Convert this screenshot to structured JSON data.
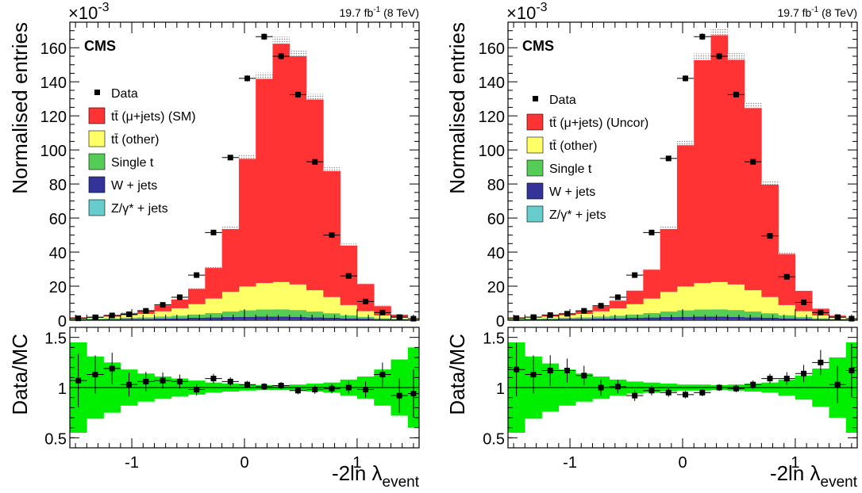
{
  "chart_data": [
    {
      "type": "bar",
      "id": "left",
      "lumi_text": "19.7 fb",
      "lumi_sup": "-1",
      "lumi_suffix": " (8 TeV)",
      "experiment": "CMS",
      "multiplier": "×10",
      "multiplier_exp": "-3",
      "ylabel": "Normalised entries",
      "ratio_ylabel": "Data/MC",
      "xlabel_main": "-2ln λ",
      "xlabel_sub": "event",
      "xlim": [
        -1.55,
        1.55
      ],
      "ylim": [
        0,
        175
      ],
      "ratio_ylim": [
        0.4,
        1.6
      ],
      "x_ticks": [
        "-1",
        "0",
        "1"
      ],
      "y_ticks": [
        "0",
        "20",
        "40",
        "60",
        "80",
        "100",
        "120",
        "140",
        "160"
      ],
      "ratio_ticks": [
        "0.5",
        "1",
        "1.5"
      ],
      "bin_edges": [
        -1.55,
        -1.4,
        -1.25,
        -1.1,
        -0.95,
        -0.8,
        -0.65,
        -0.5,
        -0.35,
        -0.2,
        -0.05,
        0.1,
        0.25,
        0.4,
        0.55,
        0.7,
        0.85,
        1.0,
        1.15,
        1.3,
        1.45,
        1.55
      ],
      "legend": [
        {
          "label": "Data",
          "kind": "marker",
          "color": "#000000"
        },
        {
          "label": "tt̄ (μ+jets) (SM)",
          "kind": "box",
          "color": "#ff3333"
        },
        {
          "label": "tt̄ (other)",
          "kind": "box",
          "color": "#ffff66"
        },
        {
          "label": "Single t",
          "kind": "box",
          "color": "#55cc55"
        },
        {
          "label": "W + jets",
          "kind": "box",
          "color": "#333399"
        },
        {
          "label": "Z/γ* + jets",
          "kind": "box",
          "color": "#66cccc"
        }
      ],
      "series": [
        {
          "name": "Z/γ* + jets",
          "color": "#66cccc",
          "values": [
            0.2,
            0.2,
            0.2,
            0.3,
            0.3,
            0.3,
            0.3,
            0.4,
            0.4,
            0.5,
            0.5,
            0.5,
            0.5,
            0.5,
            0.4,
            0.4,
            0.3,
            0.3,
            0.2,
            0.2,
            0.1
          ]
        },
        {
          "name": "W + jets",
          "color": "#333399",
          "values": [
            0.3,
            0.3,
            0.4,
            0.5,
            0.5,
            0.7,
            0.8,
            1.0,
            1.2,
            1.4,
            1.5,
            1.6,
            1.6,
            1.5,
            1.3,
            1.1,
            0.8,
            0.6,
            0.4,
            0.3,
            0.2
          ]
        },
        {
          "name": "Single t",
          "color": "#55cc55",
          "values": [
            0.3,
            0.4,
            0.5,
            0.7,
            0.9,
            1.2,
            1.6,
            2.0,
            2.6,
            3.2,
            3.8,
            4.2,
            4.3,
            4.0,
            3.4,
            2.6,
            1.8,
            1.1,
            0.6,
            0.3,
            0.2
          ]
        },
        {
          "name": "tt̄ (other)",
          "color": "#ffff66",
          "values": [
            0.6,
            0.8,
            1.0,
            1.4,
            2.0,
            3.0,
            4.3,
            6.0,
            8.5,
            11.5,
            14.0,
            15.5,
            16.0,
            15.0,
            12.5,
            9.5,
            6.0,
            3.3,
            1.6,
            0.7,
            0.3
          ]
        },
        {
          "name": "tt̄ (μ+jets) (SM)",
          "color": "#ff3333",
          "values": [
            0.3,
            0.5,
            0.9,
            1.3,
            2.2,
            3.5,
            5.2,
            9.0,
            18.0,
            37.0,
            75.0,
            120.0,
            140.0,
            134.0,
            112.0,
            74.0,
            35.0,
            16.0,
            5.5,
            1.8,
            0.4
          ]
        }
      ],
      "data_values": [
        1.1,
        1.7,
        2.8,
        3.5,
        5.5,
        9.0,
        13.5,
        26.5,
        51.5,
        95.5,
        142.0,
        166.5,
        155.0,
        132.5,
        93.0,
        50.0,
        26.0,
        11.0,
        4.5,
        1.8,
        0.9
      ],
      "ratio_values": [
        1.07,
        1.13,
        1.19,
        1.03,
        1.06,
        1.07,
        1.06,
        0.98,
        1.09,
        1.06,
        1.03,
        1.01,
        1.02,
        0.97,
        0.98,
        0.99,
        1.0,
        0.98,
        1.13,
        0.92,
        0.94
      ],
      "ratio_band": [
        0.45,
        0.31,
        0.25,
        0.18,
        0.14,
        0.11,
        0.09,
        0.07,
        0.05,
        0.04,
        0.03,
        0.025,
        0.025,
        0.03,
        0.04,
        0.05,
        0.08,
        0.11,
        0.18,
        0.28,
        0.4
      ]
    },
    {
      "type": "bar",
      "id": "right",
      "lumi_text": "19.7 fb",
      "lumi_sup": "-1",
      "lumi_suffix": " (8 TeV)",
      "experiment": "CMS",
      "multiplier": "×10",
      "multiplier_exp": "-3",
      "ylabel": "Normalised entries",
      "ratio_ylabel": "Data/MC",
      "xlabel_main": "-2ln λ",
      "xlabel_sub": "event",
      "xlim": [
        -1.55,
        1.55
      ],
      "ylim": [
        0,
        175
      ],
      "ratio_ylim": [
        0.4,
        1.6
      ],
      "x_ticks": [
        "-1",
        "0",
        "1"
      ],
      "y_ticks": [
        "0",
        "20",
        "40",
        "60",
        "80",
        "100",
        "120",
        "140",
        "160"
      ],
      "ratio_ticks": [
        "0.5",
        "1",
        "1.5"
      ],
      "bin_edges": [
        -1.55,
        -1.4,
        -1.25,
        -1.1,
        -0.95,
        -0.8,
        -0.65,
        -0.5,
        -0.35,
        -0.2,
        -0.05,
        0.1,
        0.25,
        0.4,
        0.55,
        0.7,
        0.85,
        1.0,
        1.15,
        1.3,
        1.45,
        1.55
      ],
      "legend": [
        {
          "label": "Data",
          "kind": "marker",
          "color": "#000000"
        },
        {
          "label": "tt̄ (μ+jets) (Uncor)",
          "kind": "box",
          "color": "#ff3333"
        },
        {
          "label": "tt̄ (other)",
          "kind": "box",
          "color": "#ffff66"
        },
        {
          "label": "Single t",
          "kind": "box",
          "color": "#55cc55"
        },
        {
          "label": "W + jets",
          "kind": "box",
          "color": "#333399"
        },
        {
          "label": "Z/γ* + jets",
          "kind": "box",
          "color": "#66cccc"
        }
      ],
      "series": [
        {
          "name": "Z/γ* + jets",
          "color": "#66cccc",
          "values": [
            0.2,
            0.2,
            0.2,
            0.3,
            0.3,
            0.3,
            0.3,
            0.4,
            0.4,
            0.5,
            0.5,
            0.5,
            0.5,
            0.5,
            0.4,
            0.4,
            0.3,
            0.3,
            0.2,
            0.2,
            0.1
          ]
        },
        {
          "name": "W + jets",
          "color": "#333399",
          "values": [
            0.3,
            0.3,
            0.4,
            0.5,
            0.5,
            0.7,
            0.8,
            1.0,
            1.2,
            1.4,
            1.5,
            1.6,
            1.6,
            1.5,
            1.3,
            1.1,
            0.8,
            0.6,
            0.4,
            0.3,
            0.2
          ]
        },
        {
          "name": "Single t",
          "color": "#55cc55",
          "values": [
            0.3,
            0.4,
            0.5,
            0.7,
            0.9,
            1.2,
            1.6,
            2.0,
            2.6,
            3.2,
            3.8,
            4.2,
            4.3,
            4.0,
            3.4,
            2.6,
            1.8,
            1.1,
            0.6,
            0.3,
            0.2
          ]
        },
        {
          "name": "tt̄ (other)",
          "color": "#ffff66",
          "values": [
            0.6,
            0.8,
            1.0,
            1.4,
            2.0,
            3.0,
            4.3,
            6.0,
            8.5,
            11.5,
            14.0,
            15.5,
            16.0,
            15.0,
            12.5,
            9.5,
            6.0,
            3.3,
            1.6,
            0.7,
            0.3
          ]
        },
        {
          "name": "tt̄ (μ+jets) (Uncor)",
          "color": "#ff3333",
          "values": [
            0.2,
            0.4,
            0.7,
            1.1,
            1.8,
            3.0,
            4.5,
            8.0,
            17.0,
            37.0,
            83.0,
            131.0,
            145.0,
            132.0,
            107.0,
            66.0,
            30.0,
            12.0,
            4.0,
            1.2,
            0.3
          ]
        }
      ],
      "data_values": [
        1.2,
        1.8,
        3.0,
        3.8,
        5.5,
        8.5,
        13.5,
        26.5,
        51.5,
        95.0,
        142.0,
        166.5,
        155.0,
        132.5,
        93.0,
        49.5,
        25.5,
        10.5,
        4.5,
        1.8,
        0.9
      ],
      "ratio_values": [
        1.18,
        1.13,
        1.17,
        1.17,
        1.12,
        1.0,
        1.01,
        0.92,
        0.97,
        0.95,
        0.93,
        0.95,
        1.0,
        0.99,
        1.03,
        1.09,
        1.09,
        1.14,
        1.25,
        1.03,
        1.17
      ],
      "ratio_band": [
        0.45,
        0.31,
        0.24,
        0.18,
        0.14,
        0.11,
        0.08,
        0.06,
        0.05,
        0.04,
        0.03,
        0.03,
        0.025,
        0.03,
        0.04,
        0.05,
        0.08,
        0.12,
        0.19,
        0.3,
        0.45
      ]
    }
  ]
}
